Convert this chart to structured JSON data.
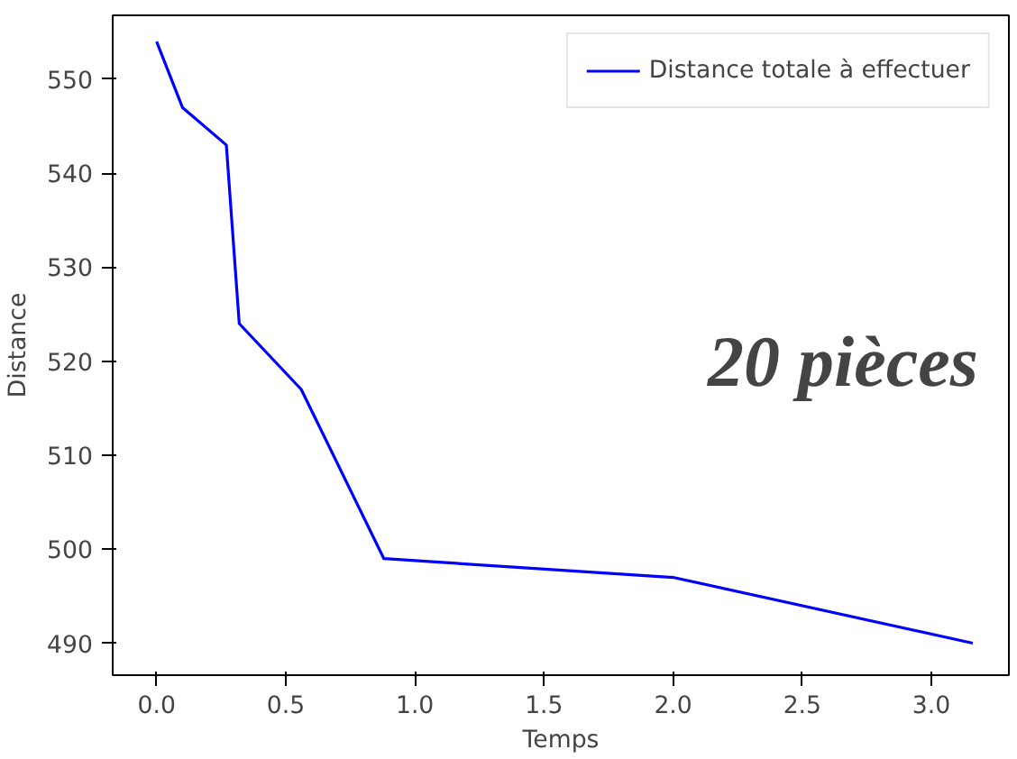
{
  "chart_data": {
    "type": "line",
    "xlabel": "Temps",
    "ylabel": "Distance",
    "x": [
      0,
      0.1,
      0.27,
      0.32,
      0.56,
      0.88,
      2.0,
      3.16
    ],
    "series": [
      {
        "name": "Distance totale à effectuer",
        "color": "#0000ff",
        "values": [
          554,
          547,
          543,
          524,
          517,
          499,
          497,
          490
        ]
      }
    ],
    "xlim": [
      -0.17,
      3.3
    ],
    "ylim": [
      486.6,
      556.8
    ],
    "xticks": [
      {
        "value": 0,
        "label": "0.0"
      },
      0.5,
      {
        "value": 1,
        "label": "1.0"
      },
      1.5,
      {
        "value": 2,
        "label": "2.0"
      },
      2.5,
      {
        "value": 3,
        "label": "3.0"
      }
    ],
    "yticks": [
      490,
      500,
      510,
      520,
      530,
      540,
      550
    ],
    "annotations": [
      "20 pièces"
    ],
    "grid": false,
    "legend": "top right",
    "marker": "none",
    "line_style": "solid"
  }
}
